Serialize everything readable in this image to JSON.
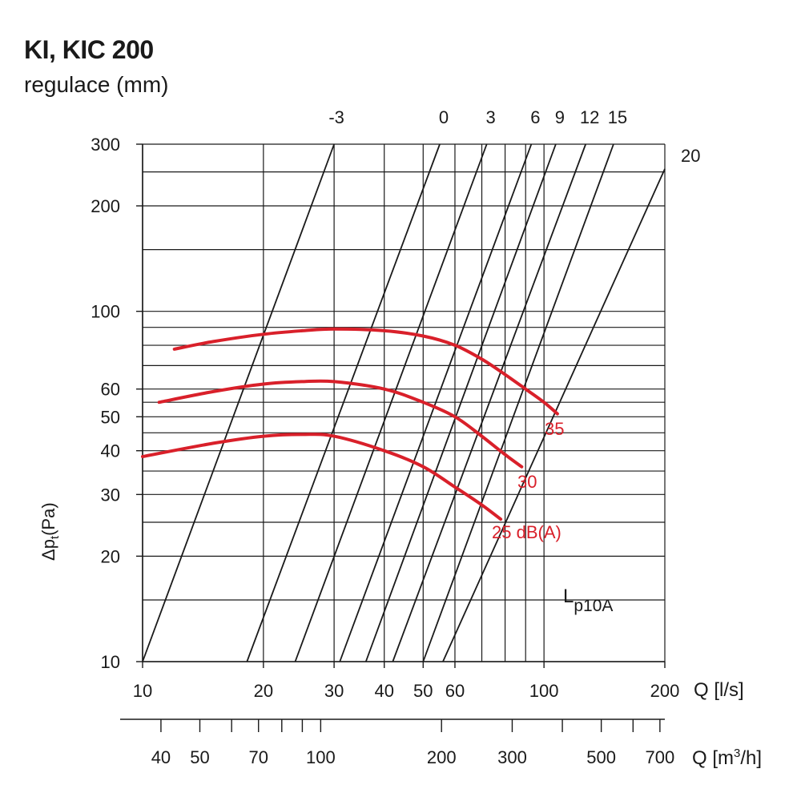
{
  "title": "KI, KIC 200",
  "subtitle": "regulace (mm)",
  "chart_data": {
    "type": "line",
    "x_scale": "log",
    "y_scale": "log",
    "xlim": [
      10,
      200
    ],
    "ylim": [
      10,
      300
    ],
    "x_ticks": [
      10,
      20,
      30,
      40,
      50,
      60,
      100,
      200
    ],
    "y_ticks": [
      10,
      20,
      30,
      40,
      50,
      60,
      100,
      200,
      300
    ],
    "x2_ticks": [
      40,
      50,
      70,
      100,
      200,
      300,
      500,
      700
    ],
    "xlabel": "Q [l/s]",
    "x2label": "Q [m³/h]",
    "ylabel": "Δpt(Pa)",
    "ylabel_main": "Δp",
    "ylabel_sub": "t",
    "ylabel_unit": "(Pa)",
    "x2label_main": "Q [m",
    "x2label_sup": "3",
    "x2label_end": "/h]",
    "grid": true,
    "regulation_label": "Lp10A",
    "regulation_label_main": "L",
    "regulation_label_sub": "p10A",
    "regulation_lines": [
      {
        "label": "-3",
        "points": [
          [
            10,
            10
          ],
          [
            30,
            300
          ]
        ]
      },
      {
        "label": "0",
        "points": [
          [
            18.2,
            10
          ],
          [
            55,
            300
          ]
        ]
      },
      {
        "label": "3",
        "points": [
          [
            24,
            10
          ],
          [
            72,
            300
          ]
        ]
      },
      {
        "label": "6",
        "points": [
          [
            31,
            10
          ],
          [
            93,
            300
          ]
        ]
      },
      {
        "label": "9",
        "points": [
          [
            36,
            10
          ],
          [
            107,
            300
          ]
        ]
      },
      {
        "label": "12",
        "points": [
          [
            42,
            10
          ],
          [
            127,
            300
          ]
        ]
      },
      {
        "label": "15",
        "points": [
          [
            50,
            10
          ],
          [
            149,
            300
          ]
        ]
      },
      {
        "label": "20",
        "points": [
          [
            56,
            10
          ],
          [
            200,
            255
          ]
        ]
      }
    ],
    "series": [
      {
        "name": "35",
        "color": "#d9202a",
        "x": [
          12,
          15,
          20,
          25,
          30,
          40,
          50,
          60,
          70,
          80,
          90,
          100,
          108
        ],
        "y": [
          78,
          82,
          86,
          88,
          89,
          88,
          85,
          80,
          73,
          66,
          60,
          55,
          51
        ]
      },
      {
        "name": "30",
        "color": "#d9202a",
        "x": [
          11,
          15,
          20,
          25,
          30,
          40,
          50,
          60,
          70,
          80,
          88
        ],
        "y": [
          55,
          59,
          62,
          63,
          63,
          60,
          55,
          50,
          44,
          39,
          36
        ]
      },
      {
        "name": "25 dB(A)",
        "color": "#d9202a",
        "x": [
          10,
          15,
          20,
          25,
          30,
          40,
          50,
          60,
          70,
          78
        ],
        "y": [
          38.5,
          42,
          44,
          44.5,
          44,
          40,
          36,
          31.5,
          28,
          25.5
        ]
      }
    ]
  }
}
